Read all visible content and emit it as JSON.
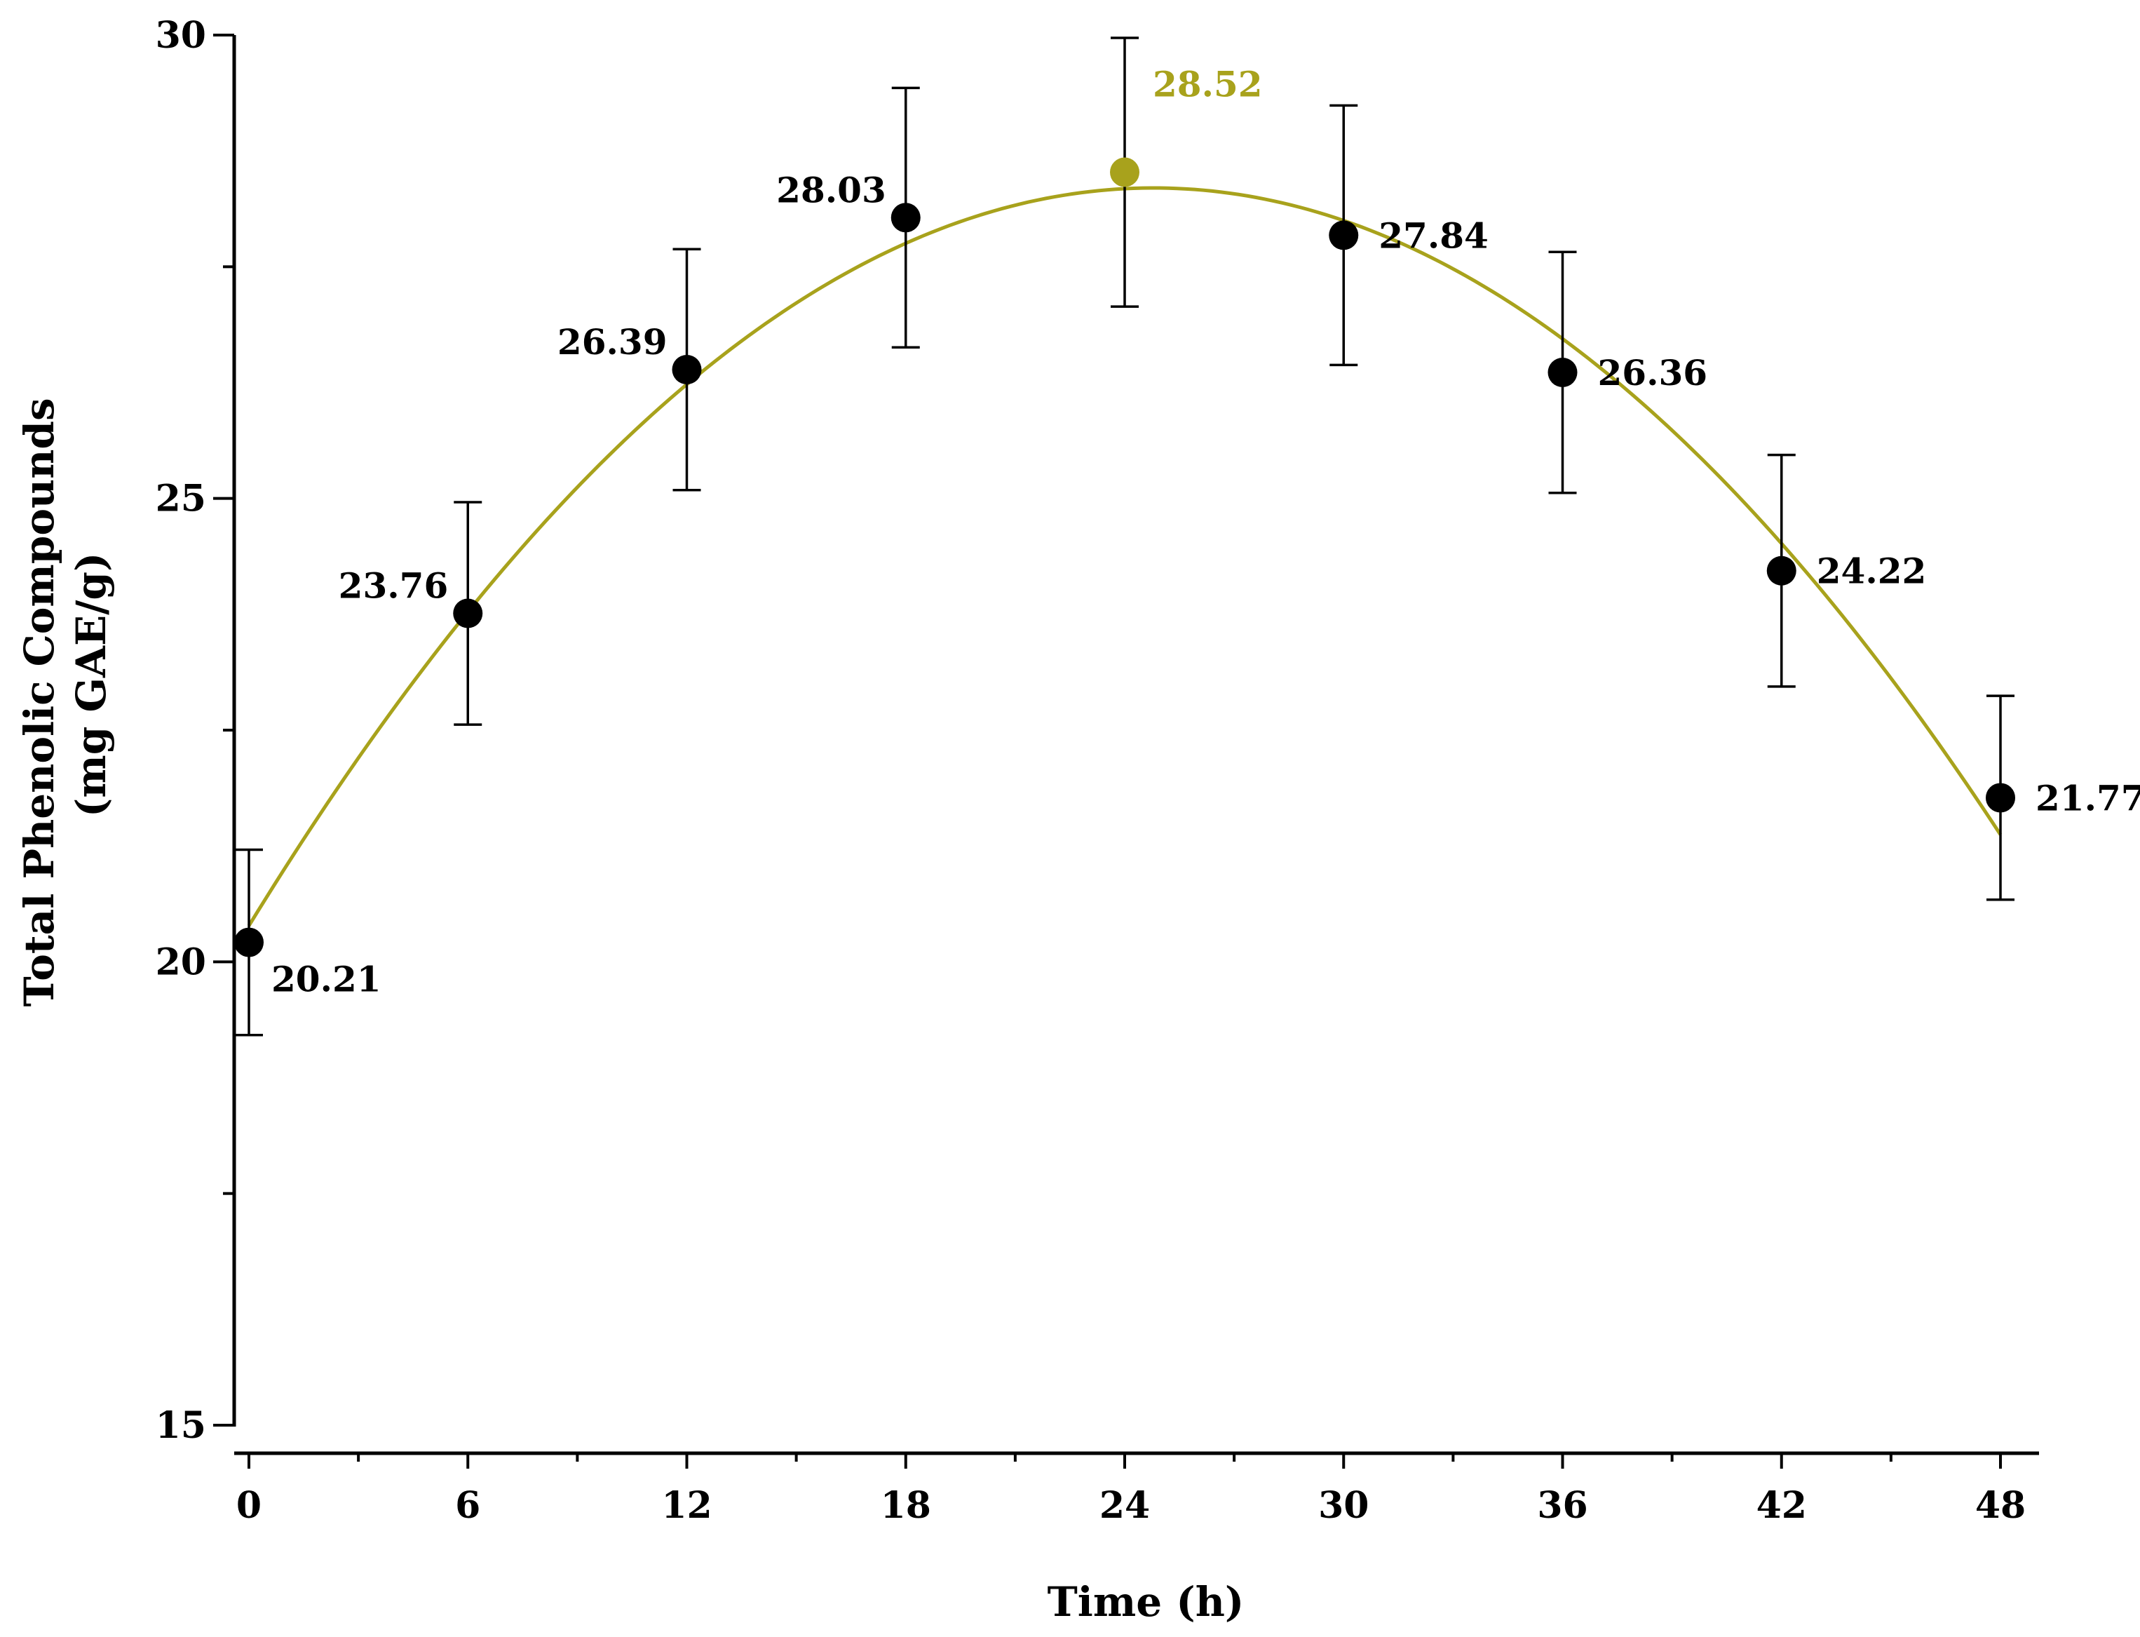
{
  "chart_data": {
    "type": "line",
    "title": "",
    "xlabel": "Time (h)",
    "ylabel": "Total Phenolic Compounds",
    "ylabel_unit": "(mg GAE/g)",
    "xlim": [
      -1,
      49
    ],
    "ylim": [
      15,
      30
    ],
    "x_ticks": [
      0,
      6,
      12,
      18,
      24,
      30,
      36,
      42,
      48
    ],
    "x_minor_ticks": [
      3,
      9,
      15,
      21,
      27,
      33,
      39,
      45
    ],
    "y_ticks": [
      15,
      20,
      25,
      30
    ],
    "y_minor_ticks": [
      17.5,
      22.5,
      27.5
    ],
    "grid": false,
    "series": [
      {
        "name": "Total Phenolic Compounds",
        "x": [
          0,
          6,
          12,
          18,
          24,
          30,
          36,
          42,
          48
        ],
        "values": [
          20.21,
          23.76,
          26.39,
          28.03,
          28.52,
          27.84,
          26.36,
          24.22,
          21.77
        ],
        "error": [
          1.0,
          1.2,
          1.3,
          1.4,
          1.45,
          1.4,
          1.3,
          1.25,
          1.1
        ],
        "labels": [
          "20.21",
          "23.76",
          "26.39",
          "28.03",
          "28.52",
          "27.84",
          "26.36",
          "24.22",
          "21.77"
        ],
        "highlight_index": 4
      }
    ],
    "fit_curve": "quadratic",
    "colors": {
      "curve": "#a8a21c",
      "point": "#000000",
      "highlight": "#a8a21c",
      "axis": "#000000"
    }
  }
}
